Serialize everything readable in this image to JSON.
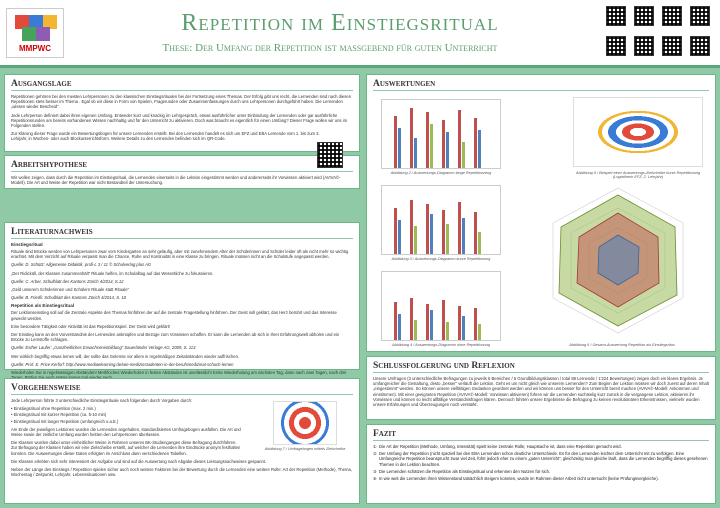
{
  "header": {
    "logo_text": "MMPWC",
    "title": "Repetition im Einstiegsritual",
    "subtitle": "These: Der Umfang der Repetition ist massgebend für guten Unterricht"
  },
  "ausgangslage": {
    "heading": "Ausgangslage",
    "p1": "Repetitionen gehören bei den meisten Lehrpersonen zu den klassischen Einstiegsritualen bei der Fortsetzung eines Themas. Der Erfolg gibt uns recht, die Lernenden sind nach diesen Repetitionen stets besser im Thema . Egal ob wir diese in Form von Spielen, Fragerunden oder Zusammenfassungen durch uns Lehrpersonen durchgeführt haben. Die Lernenden „wissen wieder Bescheid“.",
    "p2": "Jede Lehrperson definiert dabei ihren eigenen Umfang. Entweder kurz und knackig im Lehrgespräch, etwas ausführlicher unter Einbindung der Lernenden oder gar ausführliche Repetitionsrunden am bereits vorhandenen Wissen nachhaltig und für den Unterricht zu aktivieren. Doch was braucht es eigentlich für einen Umfang? Dieser Frage wollen wir uns im Folgenden stellen.",
    "p3": "Zur Klärung dieser Frage wurde ein Bewertungsbogen für unsere Lernenden erstellt. Bei den Lernenden handelt es sich um EFZ und EBA Lernende vom 1. bis zum 3. Lehrjahr, in Wochen- oder auch Blockunterrichtsform. Weitere Details zu den Lernenden befinden sich im QR-Code."
  },
  "arbeitshypothese": {
    "heading": "Arbeitshypothese",
    "p1": "Wir wollen zeigen, dass durch die Repetition im Einstiegsritual, die Lernenden einerseits in die Lektion eingestimmt  werden und andererseits ihr Vorwissen aktiviert wird (AVIVA©-Modell). Die Art und Weise der Repetition war nicht Bestandteil der Untersuchung."
  },
  "literatur": {
    "heading": "Literaturnachweis",
    "sub1": "Einstiegsritual",
    "p1": "Rituale sind Brücke werden von Lehrpersonen zwar vom Kindergarten an sehr geläufig, aber mit zunehmendem Alter der Schülerinnen und Schüler leider oft als nicht mehr so wichtig erachtet. Mit dem Verzicht auf Rituale verpasst man die Chance, Ruhe und Kontinuität in eine Klasse zu bringen. Rituale müssen nicht an die Schulstufe angepasst werden.",
    "c1": "Quelle: D. Schütz: Allgemeine Didaktik, profi-L 3 / 11 © Schulverlag plus AG",
    "p2": "„Der Ridicküll, der Klassen zusammenhält“ Rituale helfen, im Schulalltag auf das Wesentliche zu fokussieren.",
    "c2": "Quelle: C. Arber, Schulblatt des Kantons Zürich 4/2014, S.12",
    "p3": "„Geld unserem Schülerinnen und Schülern Rituale statt Rituale“",
    "c3": "Quelle: B. Friedli: Schulblatt des Kantons Zürich 4/2014, S. 18",
    "sub2": "Repetition als Einstiegsritual",
    "p4": "Der Lektionseinstieg soll auf die Zentrale Aspekte des Themas hinführen der auf die zentrale Fragestellung hinführen. Der Geist soll geklärt, das Herz berührt und das Interesse geweckt werden.",
    "p5": "Eine besondere Tätigkeit oder Aktivität ist das Repetitionsspiel. Der Geist wird geklärt!",
    "p6": "Der Einstieg kann an den Vorverständnis der Lernenden anknüpfen und Bezüge zum Vorwissen schaffen. Er kann die Lernenden ab sich in Ihrer Erfahrungswelt abholen und ein Brücke zu Lernstoffe schlagen.",
    "c4": "Quelle: Esther Laufer: „Ganzheitliches Erwachsenenbildung“ Sauerländer Verlage AG, 2009, S. 113",
    "p7": "Wer wirklich begriffig etwas lernen will, der sollte das Gelernte vor allem in regelmäßigen Zeitabständen wieder auffrischen.",
    "c5": "Quelle: Prof. E. Price Kerforf: http://www.mediaelearning.de/wie-medizinstudenten-in-der-berufsmedizinat-schuch-lernen",
    "p8": "Wiederholen Sie in regelmässigen Abständen! Methfoches Wiederholen in festen Abständen ist unerlässlich! Erste Wiederholung am nächsten Tag, dann nach zwei Tagen, nach drei Tagen. Prüfen Sie auch später immer mal wieder nach.",
    "c6": "Quelle: Christoph Städel, Willy Obrist, Andreas Grassi: Klassenführung Seite 153"
  },
  "vorgehensweise": {
    "heading": "Vorgehensweise",
    "p1": "Jede Lehrperson führte 3 unterschiedliche Einstiegsrituale nach folgenden durch Vorgaben durch:",
    "items": [
      "• Einstiegsritual ohne Repetition (max. 2 min.)",
      "• Einstiegsritual mit kurzer Repetition (ca. 5-10 min)",
      "• Einstiegsritual mit langer Repetition (umfangreich o.a.E.)"
    ],
    "p2": "Am Ende der jeweiligen Lektionen wurden die Lernenden angehalten, standardisiertes Umfragebogen ausfüllen. Die Art und Weise sowie der zeitliche Umfang wurden heitten den Lehrpersonen überlassen.",
    "p3": "Die Klassen wurden dabei unter einheitlicher Weise in Rahmen unseres BK-Studienganges diese Befragung durchführen. Zur Befragung der Klassen haben wir eine Zielscheibe erstellt, auf welcher die Lernenden ihre Eindrücke anonym festhalten konnten. Die Auswertungen dieser Daten erfolgten im Anschluss dann verschiedenen Tabellen.",
    "p4": "Die Klassen erlebten sich sehr interessiert der Aufgabe und sind auf die Auswertung nach Abgabe dieses Leistungsnachweises gespannt.",
    "p5": "Neben der Länge des Einstiegs / Repetition spielen sicher auch noch weitere Faktoren bei der Bewertung durch die Lernenden eine weitere Rolle: Art der Repetition (Methode), Thema, Wochentag / Zeitpunkt, Lehrjahr, Lebenssituationen usw.",
    "caption": "Abbildung 7 / Umfragebogen mittels Zielscheibe"
  },
  "auswertungen": {
    "heading": "Auswertungen",
    "cap1": "Abbildung 2 / Auswertungs-Diagramm lange Repetitionzeug",
    "cap2": "Abbildung 5 / Beispiel einer Auswertungs-Zielscheibe kurze Repetitionung (Logistikerin EFZ, 2. Lehrjahr)",
    "cap3": "Abbildung 3 / Auswertungs-Diagramm kurze Repetitionung",
    "cap4": "Abbildung 4 / Auswertungs-Diagramm ohne Repetitionung",
    "cap5": "Abbildung 6 / Gesamt-Auswertung Repetition als Einstiegsritus"
  },
  "schluss": {
    "heading": "Schlussfolgerung und Reflexion",
    "p1": "Unsere Umfragen (3 unterschiedliche Befragungen zu jeweils 6 Bereichen / 5 Grundbildungsklassen / total 88 Lernende / 1'224 Bewertungen) zeigen doch ein klares Ergebnis. Je umfangreicher die Gestaltung, desto „besser“ verläuft die Lektion. Geht es um nicht gleich wie unserem Lernenden? Zum Beginn der Lektion müssen wir doch zuerst auf deren Inhalt „eingestimmt“ werden. So können unsere vielfältigen Gedanken geordnet werden und wir können uns besser für den Unterricht bereit machen (AVIVA©-Modell: Ankommen und einstimmen). Mit einer geeigneten Repetition (AVIVA©-Modell: Vorwissen aktivieren) führen wir die Lernenden suchtselig kurz zurück in die vergangene Lektion, aktivieren ihr Vorwissen und können so leicht allfällige Verständnisfragen klären. Dennoch führten unsere Ergebnisse die Befragung zu keinen revolutionären Erkenntnissen, vielmehr wurden unsere Erfahrungen und Überzeugungen noch verstärkt."
  },
  "fazit": {
    "heading": "Fazit",
    "items": [
      {
        "num": "①",
        "text": "Die Art der Repetition (Methode, Umfang, Intensität) spielt keine zentrale Rolle; Hauptsache ist, dass eine Repetition gemacht wird."
      },
      {
        "num": "②",
        "text": "Der Umfang der Repetition (nicht speziell bei den EBA Lernenden schon deutliche Unterschiede. Es für den Lernenden leichter dem Unterricht mit zu verfolgen. Eine Umfangreiche Repetition beansprucht zwar viel Zeit, führt jedoch eher zu einem „guten Unterricht“, gleichzeitig man gleiche läuft, dass die Lernenden begrifflig dieses gesehenen Themen in der Lektion beachten."
      },
      {
        "num": "③",
        "text": "Die Lernenden schätzen die Repetition als Einstiegsritual und erkennen den Nutzen für sich."
      },
      {
        "num": "④",
        "text": "In wie weit die Lernenden ihren Wissenstand tatsächlich steigern konnten, wurde im Rahmen dieser Arbeit nicht untersucht (keine Prüfungsvergleiche)."
      }
    ]
  },
  "colors": {
    "green": "#5a9e6f",
    "bar_red": "#c0504d",
    "bar_blue": "#4f81bd",
    "bar_green": "#9bbb59"
  }
}
